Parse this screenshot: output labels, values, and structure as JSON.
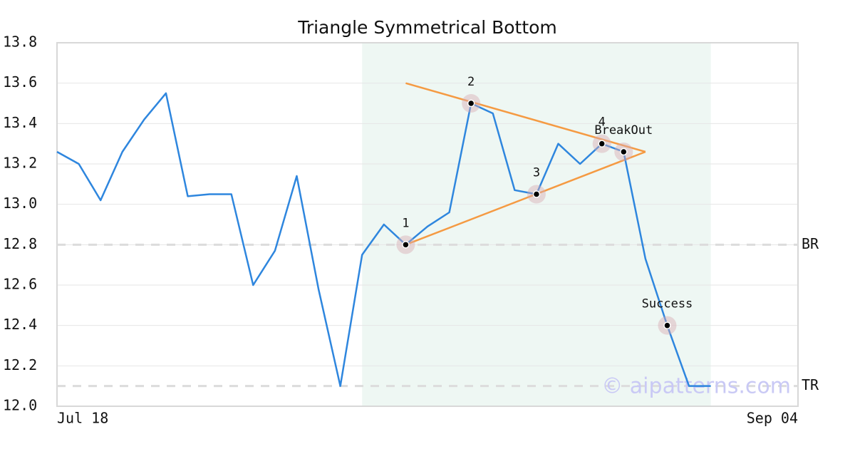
{
  "chart_data": {
    "type": "line",
    "title": "Triangle Symmetrical Bottom",
    "categories": [
      "Jul 18",
      null,
      null,
      null,
      null,
      null,
      null,
      null,
      null,
      null,
      null,
      null,
      null,
      null,
      null,
      null,
      null,
      null,
      null,
      null,
      null,
      null,
      null,
      null,
      null,
      null,
      null,
      null,
      null,
      null,
      null,
      null,
      null,
      null,
      "Sep 04"
    ],
    "values": [
      13.26,
      13.2,
      13.02,
      13.26,
      13.42,
      13.55,
      13.04,
      13.05,
      13.05,
      12.6,
      12.77,
      13.14,
      12.58,
      12.1,
      12.75,
      12.9,
      12.8,
      12.89,
      12.96,
      13.5,
      13.45,
      13.07,
      13.05,
      13.3,
      13.2,
      13.3,
      13.26,
      12.73,
      12.4,
      12.1,
      12.1,
      null,
      null,
      null,
      null
    ],
    "color": "#2e86de",
    "ylim": [
      12.0,
      13.8
    ],
    "yticks": [
      {
        "value": 12.0,
        "label": "12.0"
      },
      12.2,
      12.4,
      12.6,
      12.8,
      {
        "value": 13.0,
        "label": "13.0"
      },
      13.2,
      13.4,
      13.6,
      13.8
    ],
    "grid": true,
    "shaded_range": [
      14,
      30
    ],
    "shade_color": "#eef7f3",
    "levels": [
      {
        "label": "BR",
        "value": 12.8
      },
      {
        "label": "TR",
        "value": 12.1
      }
    ],
    "trend_lines": [
      {
        "x": [
          16,
          27
        ],
        "y": [
          13.6,
          13.26
        ]
      },
      {
        "x": [
          16,
          27
        ],
        "y": [
          12.8,
          13.26
        ]
      }
    ],
    "trend_color": "#f59a42",
    "points": [
      {
        "label": "1",
        "x": 16,
        "y": 12.8
      },
      {
        "label": "2",
        "x": 19,
        "y": 13.5
      },
      {
        "label": "3",
        "x": 22,
        "y": 13.05
      },
      {
        "label": "4",
        "x": 25,
        "y": 13.3
      },
      {
        "label": "BreakOut",
        "x": 26,
        "y": 13.26
      },
      {
        "label": "Success",
        "x": 28,
        "y": 12.4
      }
    ],
    "watermark": "© aipatterns.com"
  }
}
